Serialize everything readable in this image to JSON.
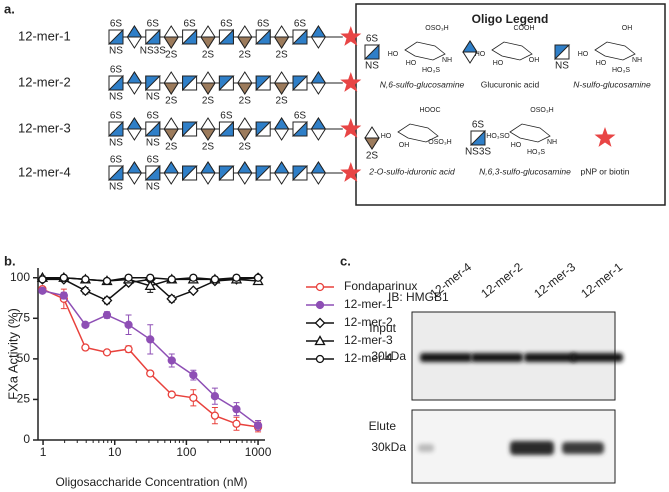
{
  "panel_labels": {
    "a": "a.",
    "b": "b.",
    "c": "c."
  },
  "oligos": {
    "rows": [
      {
        "name": "12-mer-1",
        "units": [
          {
            "kind": "sq6",
            "top": "6S",
            "bottom": "NS"
          },
          {
            "kind": "glca"
          },
          {
            "kind": "sq63",
            "top": "6S",
            "bottom": "NS3S"
          },
          {
            "kind": "idoa",
            "bottom": "2S"
          },
          {
            "kind": "sq6",
            "top": "6S"
          },
          {
            "kind": "idoa",
            "bottom": "2S"
          },
          {
            "kind": "sq6",
            "top": "6S"
          },
          {
            "kind": "idoa",
            "bottom": "2S"
          },
          {
            "kind": "sq6",
            "top": "6S"
          },
          {
            "kind": "idoa",
            "bottom": "2S"
          },
          {
            "kind": "sq6",
            "top": "6S"
          },
          {
            "kind": "glca"
          }
        ]
      },
      {
        "name": "12-mer-2",
        "units": [
          {
            "kind": "sq6",
            "top": "6S",
            "bottom": "NS"
          },
          {
            "kind": "glca"
          },
          {
            "kind": "sq",
            "bottom": "NS"
          },
          {
            "kind": "idoa",
            "bottom": "2S"
          },
          {
            "kind": "sq"
          },
          {
            "kind": "idoa",
            "bottom": "2S"
          },
          {
            "kind": "sq"
          },
          {
            "kind": "idoa",
            "bottom": "2S"
          },
          {
            "kind": "sq"
          },
          {
            "kind": "idoa",
            "bottom": "2S"
          },
          {
            "kind": "sq"
          },
          {
            "kind": "glca"
          }
        ]
      },
      {
        "name": "12-mer-3",
        "units": [
          {
            "kind": "sq6",
            "top": "6S",
            "bottom": "NS"
          },
          {
            "kind": "glca"
          },
          {
            "kind": "sq6",
            "top": "6S",
            "bottom": "NS"
          },
          {
            "kind": "idoa",
            "bottom": "2S"
          },
          {
            "kind": "sq"
          },
          {
            "kind": "idoa",
            "bottom": "2S"
          },
          {
            "kind": "sq6",
            "top": "6S"
          },
          {
            "kind": "idoa",
            "bottom": "2S"
          },
          {
            "kind": "sq"
          },
          {
            "kind": "glca"
          },
          {
            "kind": "sq6",
            "top": "6S"
          },
          {
            "kind": "glca"
          }
        ]
      },
      {
        "name": "12-mer-4",
        "units": [
          {
            "kind": "sq6",
            "top": "6S",
            "bottom": "NS"
          },
          {
            "kind": "glca"
          },
          {
            "kind": "sq6",
            "top": "6S",
            "bottom": "NS"
          },
          {
            "kind": "glca"
          },
          {
            "kind": "sq"
          },
          {
            "kind": "glca"
          },
          {
            "kind": "sq"
          },
          {
            "kind": "glca"
          },
          {
            "kind": "sq"
          },
          {
            "kind": "glca"
          },
          {
            "kind": "sq"
          },
          {
            "kind": "glca"
          }
        ]
      }
    ]
  },
  "legend": {
    "title": "Oligo Legend",
    "items": [
      {
        "symbol": {
          "kind": "sq6",
          "top": "6S",
          "bottom": "NS"
        },
        "name": "N,6-sulfo-glucosamine",
        "structure_labels": [
          "OSO₃H",
          "HO",
          "HO",
          "NH",
          "HO₃S"
        ]
      },
      {
        "symbol": {
          "kind": "glca"
        },
        "name": "Glucuronic acid",
        "structure_labels": [
          "COOH",
          "HO",
          "HO",
          "OH"
        ]
      },
      {
        "symbol": {
          "kind": "sq",
          "bottom": "NS"
        },
        "name": "N-sulfo-glucosamine",
        "structure_labels": [
          "OH",
          "HO",
          "HO",
          "NH",
          "HO₃S"
        ]
      },
      {
        "symbol": {
          "kind": "idoa",
          "bottom": "2S"
        },
        "name": "2-O-sulfo-iduronic acid",
        "structure_labels": [
          "HOOC",
          "HO",
          "OH",
          "OSO₃H"
        ]
      },
      {
        "symbol": {
          "kind": "sq63",
          "top": "6S",
          "bottom": "NS3S"
        },
        "name": "N,6,3-sulfo-glucosamine",
        "structure_labels": [
          "OSO₃H",
          "HO₃SO",
          "HO",
          "NH",
          "HO₃S"
        ]
      },
      {
        "symbol": {
          "kind": "star"
        },
        "name": "pNP or biotin"
      }
    ]
  },
  "chart_data": {
    "type": "line",
    "xlabel": "Oligosaccharide Concentration (nM)",
    "ylabel": "FXa Activity (%)",
    "xscale": "log",
    "xlim": [
      0.85,
      1250
    ],
    "xticks": [
      1,
      10,
      100,
      1000
    ],
    "ylim": [
      0,
      106
    ],
    "yticks": [
      0,
      25,
      50,
      75,
      100
    ],
    "legend": "right",
    "x": [
      0.98,
      1.95,
      3.9,
      7.8,
      15.6,
      31.3,
      62.5,
      125,
      250,
      500,
      1000
    ],
    "series": [
      {
        "name": "Fondaparinux",
        "color": "#e8413c",
        "marker": "circle-open",
        "values": [
          93,
          87,
          57,
          54,
          56,
          41,
          28,
          26,
          15,
          10,
          8
        ],
        "errors": [
          1,
          6,
          1,
          1,
          2,
          1,
          1,
          5,
          5,
          4,
          3
        ]
      },
      {
        "name": "12-mer-1",
        "color": "#8e4fb5",
        "marker": "circle-filled",
        "values": [
          92,
          89,
          71,
          77,
          71,
          62,
          49,
          40,
          27,
          19,
          9
        ],
        "errors": [
          1,
          2,
          1,
          2,
          6,
          9,
          4,
          3,
          5,
          4,
          3
        ]
      },
      {
        "name": "12-mer-2",
        "color": "#111111",
        "marker": "diamond-open",
        "values": [
          99,
          99,
          92,
          86,
          97,
          99,
          87,
          92,
          98,
          99,
          100
        ],
        "errors": [
          1,
          1,
          2,
          2,
          1,
          1,
          2,
          1,
          1,
          1,
          1
        ]
      },
      {
        "name": "12-mer-3",
        "color": "#111111",
        "marker": "triangle-open",
        "values": [
          100,
          100,
          99,
          98,
          99,
          95,
          99,
          99,
          99,
          99,
          98
        ],
        "errors": [
          1,
          1,
          1,
          1,
          1,
          4,
          1,
          1,
          1,
          1,
          2
        ]
      },
      {
        "name": "12-mer-4",
        "color": "#111111",
        "marker": "circle-open",
        "values": [
          99,
          100,
          99,
          98,
          100,
          100,
          99,
          100,
          99,
          100,
          100
        ],
        "errors": [
          1,
          1,
          1,
          1,
          1,
          1,
          1,
          1,
          1,
          1,
          1
        ]
      }
    ]
  },
  "blot": {
    "antibody": "IB: HMGB1",
    "lanes": [
      "12-mer-4",
      "12-mer-2",
      "12-mer-3",
      "12-mer-1"
    ],
    "panels": [
      {
        "name": "Input",
        "marker": "30kDa"
      },
      {
        "name": "Elute",
        "marker": "30kDa"
      }
    ]
  }
}
